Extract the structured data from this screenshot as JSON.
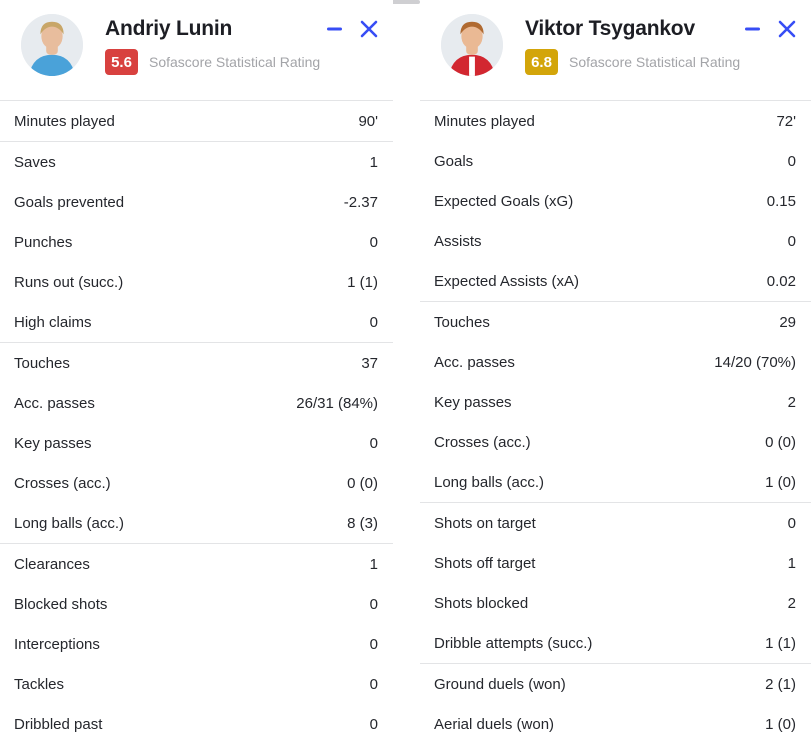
{
  "accent": {
    "control_blue": "#374df5",
    "divider": "#e3e4e6",
    "rating_red": "#d8413f",
    "rating_yellow": "#d3a50a"
  },
  "icons": {
    "minimize": "minus-bar",
    "close": "x-cross"
  },
  "players": [
    {
      "name": "Andriy Lunin",
      "rating": "5.6",
      "rating_color": "#d8413f",
      "rating_label": "Sofascore Statistical Rating",
      "avatar": {
        "bg": "#e7ebef",
        "skin": "#e8bd9d",
        "hair": "#c8a668",
        "jersey": "#4aa2d9",
        "jersey_stripe": "#4aa2d9"
      },
      "groups": [
        [
          {
            "label": "Minutes played",
            "value": "90'"
          }
        ],
        [
          {
            "label": "Saves",
            "value": "1"
          },
          {
            "label": "Goals prevented",
            "value": "-2.37"
          },
          {
            "label": "Punches",
            "value": "0"
          },
          {
            "label": "Runs out (succ.)",
            "value": "1 (1)"
          },
          {
            "label": "High claims",
            "value": "0"
          }
        ],
        [
          {
            "label": "Touches",
            "value": "37"
          },
          {
            "label": "Acc. passes",
            "value": "26/31 (84%)"
          },
          {
            "label": "Key passes",
            "value": "0"
          },
          {
            "label": "Crosses (acc.)",
            "value": "0 (0)"
          },
          {
            "label": "Long balls (acc.)",
            "value": "8 (3)"
          }
        ],
        [
          {
            "label": "Clearances",
            "value": "1"
          },
          {
            "label": "Blocked shots",
            "value": "0"
          },
          {
            "label": "Interceptions",
            "value": "0"
          },
          {
            "label": "Tackles",
            "value": "0"
          },
          {
            "label": "Dribbled past",
            "value": "0"
          }
        ]
      ]
    },
    {
      "name": "Viktor Tsygankov",
      "rating": "6.8",
      "rating_color": "#d3a50a",
      "rating_label": "Sofascore Statistical Rating",
      "avatar": {
        "bg": "#e7ebef",
        "skin": "#eab994",
        "hair": "#b06a31",
        "jersey": "#d22730",
        "jersey_stripe": "#ffffff"
      },
      "groups": [
        [
          {
            "label": "Minutes played",
            "value": "72'"
          },
          {
            "label": "Goals",
            "value": "0"
          },
          {
            "label": "Expected Goals (xG)",
            "value": "0.15"
          },
          {
            "label": "Assists",
            "value": "0"
          },
          {
            "label": "Expected Assists (xA)",
            "value": "0.02"
          }
        ],
        [
          {
            "label": "Touches",
            "value": "29"
          },
          {
            "label": "Acc. passes",
            "value": "14/20 (70%)"
          },
          {
            "label": "Key passes",
            "value": "2"
          },
          {
            "label": "Crosses (acc.)",
            "value": "0 (0)"
          },
          {
            "label": "Long balls (acc.)",
            "value": "1 (0)"
          }
        ],
        [
          {
            "label": "Shots on target",
            "value": "0"
          },
          {
            "label": "Shots off target",
            "value": "1"
          },
          {
            "label": "Shots blocked",
            "value": "2"
          },
          {
            "label": "Dribble attempts (succ.)",
            "value": "1 (1)"
          }
        ],
        [
          {
            "label": "Ground duels (won)",
            "value": "2 (1)"
          },
          {
            "label": "Aerial duels (won)",
            "value": "1 (0)"
          }
        ]
      ]
    }
  ]
}
